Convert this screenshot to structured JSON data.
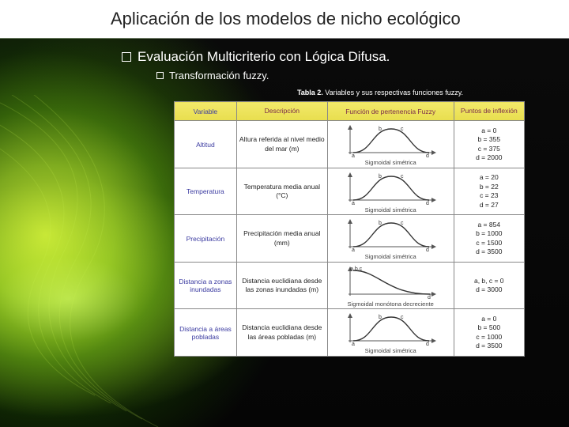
{
  "title": "Aplicación de los modelos de nicho ecológico",
  "bullet1": "Evaluación Multicriterio con Lógica Difusa.",
  "bullet2": "Transformación fuzzy.",
  "caption_bold": "Tabla 2.",
  "caption_rest": " Variables y sus respectivas funciones fuzzy.",
  "headers": {
    "h1": "Variable",
    "h2": "Descripción",
    "h3": "Función de pertenencia Fuzzy",
    "h4": "Puntos de inflexión"
  },
  "rows": [
    {
      "variable": "Altitud",
      "desc": "Altura referida al nivel medio del mar (m)",
      "func_type": "Sigmoidal simétrica",
      "curve": "bell",
      "points": "a = 0\nb = 355\nc = 375\nd = 2000"
    },
    {
      "variable": "Temperatura",
      "desc": "Temperatura media anual (°C)",
      "func_type": "Sigmoidal simétrica",
      "curve": "bell",
      "points": "a = 20\nb = 22\nc = 23\nd = 27"
    },
    {
      "variable": "Precipitación",
      "desc": "Precipitación media anual (mm)",
      "func_type": "Sigmoidal simétrica",
      "curve": "bell",
      "points": "a = 854\nb = 1000\nc = 1500\nd = 3500"
    },
    {
      "variable": "Distancia a zonas inundadas",
      "desc": "Distancia euclidiana desde las zonas inundadas (m)",
      "func_type": "Sigmoidal monótona decreciente",
      "curve": "decreasing",
      "points": "a, b, c = 0\nd = 3000"
    },
    {
      "variable": "Distancia a áreas pobladas",
      "desc": "Distancia euclidiana desde las áreas pobladas (m)",
      "func_type": "Sigmoidal simétrica",
      "curve": "bell",
      "points": "a = 0\nb = 500\nc = 1000\nd = 3500"
    }
  ],
  "style": {
    "header_bg": "#ece15a",
    "header_text": "#7a2a4a",
    "var_text": "#3a3aa0",
    "curve_stroke": "#333333",
    "curve_fill": "none",
    "axis_stroke": "#555555"
  }
}
